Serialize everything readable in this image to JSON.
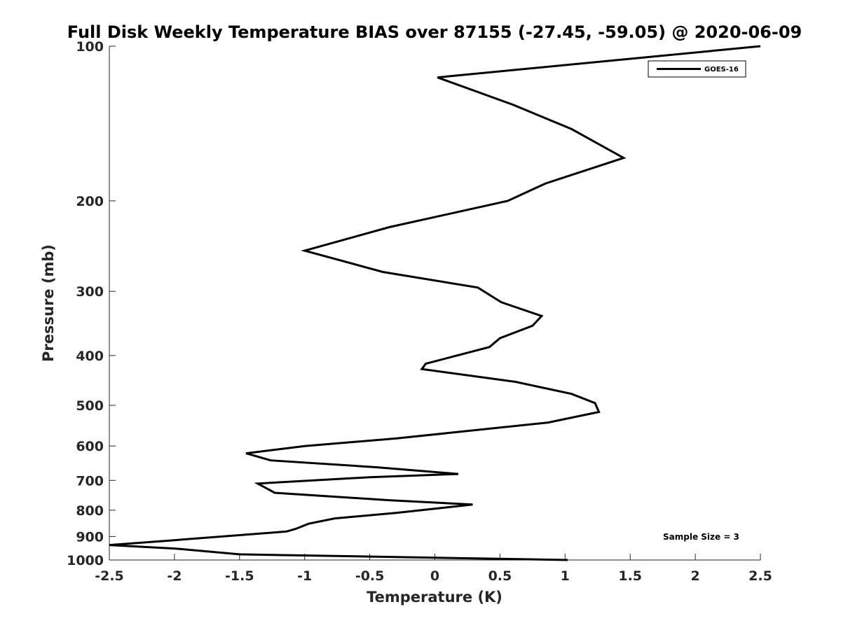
{
  "chart_data": {
    "type": "line",
    "title": "Full Disk Weekly Temperature BIAS over 87155 (-27.45, -59.05) @ 2020-06-09",
    "xlabel": "Temperature (K)",
    "ylabel": "Pressure (mb)",
    "xlim": [
      -2.5,
      2.5
    ],
    "ylim": [
      100,
      1000
    ],
    "yscale": "log",
    "yreversed": true,
    "x_ticks": [
      -2.5,
      -2,
      -1.5,
      -1,
      -0.5,
      0,
      0.5,
      1,
      1.5,
      2,
      2.5
    ],
    "x_tick_labels": [
      "-2.5",
      "-2",
      "-1.5",
      "-1",
      "-0.5",
      "0",
      "0.5",
      "1",
      "1.5",
      "2",
      "2.5"
    ],
    "y_ticks": [
      100,
      200,
      300,
      400,
      500,
      600,
      700,
      800,
      900,
      1000
    ],
    "y_tick_labels": [
      "100",
      "200",
      "300",
      "400",
      "500",
      "600",
      "700",
      "800",
      "900",
      "1000"
    ],
    "legend_position": "top-right",
    "grid": false,
    "annotation": "Sample Size = 3",
    "series": [
      {
        "name": "GOES-16",
        "color": "#000000",
        "temperature": [
          2.5,
          0.02,
          0.6,
          1.05,
          1.45,
          0.85,
          0.56,
          -0.35,
          -1.0,
          -0.4,
          0.33,
          0.51,
          0.82,
          0.75,
          0.5,
          0.42,
          -0.07,
          -0.1,
          0.62,
          1.05,
          1.23,
          1.26,
          0.87,
          -0.3,
          -1.0,
          -1.45,
          -1.26,
          -0.45,
          0.18,
          -0.5,
          -1.36,
          -1.23,
          -0.35,
          0.29,
          -0.3,
          -0.77,
          -0.97,
          -1.07,
          -1.14,
          -2.0,
          -2.5,
          -2.0,
          -1.5,
          1.02
        ],
        "pressure": [
          100,
          115,
          130,
          145,
          165,
          185,
          200,
          225,
          250,
          275,
          295,
          315,
          335,
          350,
          370,
          385,
          415,
          425,
          450,
          475,
          495,
          515,
          540,
          580,
          600,
          620,
          640,
          660,
          680,
          690,
          710,
          740,
          765,
          780,
          810,
          830,
          850,
          870,
          880,
          915,
          935,
          950,
          975,
          1000
        ]
      }
    ]
  }
}
